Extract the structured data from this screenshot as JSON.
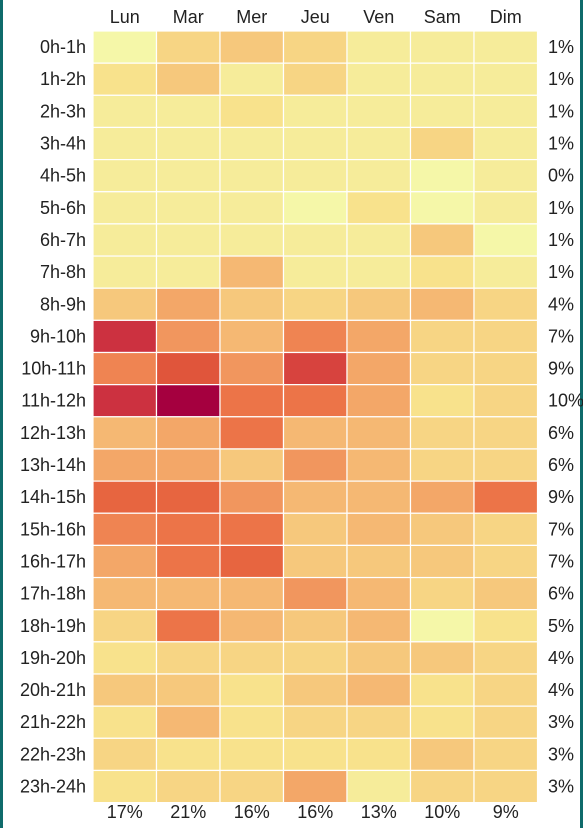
{
  "chart_data": {
    "type": "heatmap",
    "columns": [
      "Lun",
      "Mar",
      "Mer",
      "Jeu",
      "Ven",
      "Sam",
      "Dim"
    ],
    "rows": [
      "0h-1h",
      "1h-2h",
      "2h-3h",
      "3h-4h",
      "4h-5h",
      "5h-6h",
      "6h-7h",
      "7h-8h",
      "8h-9h",
      "9h-10h",
      "10h-11h",
      "11h-12h",
      "12h-13h",
      "13h-14h",
      "14h-15h",
      "15h-16h",
      "16h-17h",
      "17h-18h",
      "18h-19h",
      "19h-20h",
      "20h-21h",
      "21h-22h",
      "22h-23h",
      "23h-24h"
    ],
    "values": [
      [
        1,
        4,
        5,
        4,
        2,
        2,
        2
      ],
      [
        3,
        5,
        2,
        4,
        2,
        2,
        2
      ],
      [
        2,
        2,
        3,
        2,
        2,
        2,
        2
      ],
      [
        2,
        2,
        2,
        2,
        2,
        4,
        2
      ],
      [
        2,
        2,
        2,
        2,
        2,
        1,
        2
      ],
      [
        2,
        2,
        2,
        1,
        3,
        1,
        2
      ],
      [
        2,
        2,
        2,
        2,
        2,
        5,
        1
      ],
      [
        2,
        2,
        6,
        2,
        2,
        3,
        2
      ],
      [
        5,
        7,
        5,
        4,
        5,
        6,
        4
      ],
      [
        14,
        8,
        6,
        9,
        7,
        4,
        4
      ],
      [
        9,
        12,
        8,
        13,
        7,
        4,
        4
      ],
      [
        14,
        16,
        10,
        10,
        7,
        3,
        4
      ],
      [
        6,
        7,
        10,
        6,
        6,
        4,
        4
      ],
      [
        7,
        7,
        5,
        8,
        6,
        4,
        4
      ],
      [
        11,
        11,
        8,
        6,
        6,
        7,
        10
      ],
      [
        9,
        10,
        10,
        5,
        6,
        5,
        4
      ],
      [
        7,
        10,
        11,
        5,
        5,
        5,
        4
      ],
      [
        6,
        6,
        6,
        8,
        6,
        4,
        5
      ],
      [
        4,
        10,
        6,
        5,
        6,
        1,
        3
      ],
      [
        3,
        4,
        4,
        4,
        5,
        5,
        4
      ],
      [
        5,
        5,
        3,
        5,
        6,
        3,
        4
      ],
      [
        3,
        6,
        3,
        4,
        4,
        3,
        4
      ],
      [
        4,
        3,
        3,
        3,
        3,
        5,
        4
      ],
      [
        3,
        4,
        4,
        7,
        2,
        4,
        4
      ]
    ],
    "row_totals": [
      "1%",
      "1%",
      "1%",
      "1%",
      "0%",
      "1%",
      "1%",
      "1%",
      "4%",
      "7%",
      "9%",
      "10%",
      "6%",
      "6%",
      "9%",
      "7%",
      "7%",
      "6%",
      "5%",
      "4%",
      "4%",
      "3%",
      "3%",
      "3%"
    ],
    "column_totals": [
      "17%",
      "21%",
      "16%",
      "16%",
      "13%",
      "10%",
      "9%"
    ],
    "color_scale": [
      "#f5f7a8",
      "#f8e08a",
      "#f6c47a",
      "#f2a064",
      "#ee7a4c",
      "#e35a3a",
      "#cf3440",
      "#a5003f"
    ],
    "value_range": [
      1,
      16
    ]
  }
}
